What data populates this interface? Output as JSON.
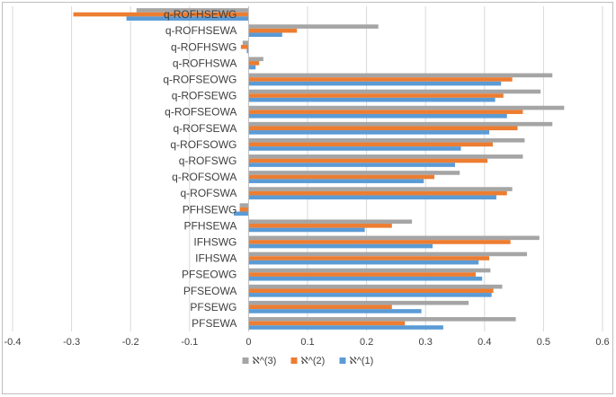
{
  "chart_data": {
    "type": "bar",
    "orientation": "horizontal",
    "categories": [
      "q-ROFHSEWG",
      "q-ROFHSEWA",
      "q-ROFHSWG",
      "q-ROFHSWA",
      "q-ROFSEOWG",
      "q-ROFSEWG",
      "q-ROFSEOWA",
      "q-ROFSEWA",
      "q-ROFSOWG",
      "q-ROFSWG",
      "q-ROFSOWA",
      "q-ROFSWA",
      "PFHSEWG",
      "PFHSEWA",
      "IFHSWG",
      "IFHSWA",
      "PFSEOWG",
      "PFSEOWA",
      "PFSEWG",
      "PFSEWA"
    ],
    "series": [
      {
        "name": "ℵ^(3)",
        "color": "#a5a5a5",
        "values": [
          -0.19,
          0.22,
          -0.01,
          0.025,
          0.515,
          0.495,
          0.535,
          0.515,
          0.468,
          0.465,
          0.358,
          0.447,
          -0.015,
          0.277,
          0.493,
          0.472,
          0.41,
          0.43,
          0.373,
          0.453
        ]
      },
      {
        "name": "ℵ^(2)",
        "color": "#ed7d31",
        "values": [
          -0.297,
          0.082,
          -0.013,
          0.018,
          0.447,
          0.432,
          0.465,
          0.456,
          0.414,
          0.405,
          0.315,
          0.438,
          -0.015,
          0.243,
          0.444,
          0.408,
          0.385,
          0.415,
          0.243,
          0.265
        ]
      },
      {
        "name": "ℵ^(1)",
        "color": "#5b9bd5",
        "values": [
          -0.207,
          0.057,
          -0.003,
          0.012,
          0.428,
          0.418,
          0.438,
          0.408,
          0.36,
          0.35,
          0.297,
          0.42,
          -0.025,
          0.197,
          0.312,
          0.39,
          0.396,
          0.412,
          0.293,
          0.33
        ]
      }
    ],
    "x_ticks": [
      "-0.4",
      "-0.3",
      "-0.2",
      "-0.1",
      "0",
      "0.1",
      "0.2",
      "0.3",
      "0.4",
      "0.5",
      "0.6"
    ],
    "xlim": [
      -0.4,
      0.6
    ],
    "title": "",
    "xlabel": "",
    "ylabel": "",
    "grid": "vertical",
    "legend_position": "bottom",
    "legend_order": [
      "ℵ^(3)",
      "ℵ^(2)",
      "ℵ^(1)"
    ]
  }
}
